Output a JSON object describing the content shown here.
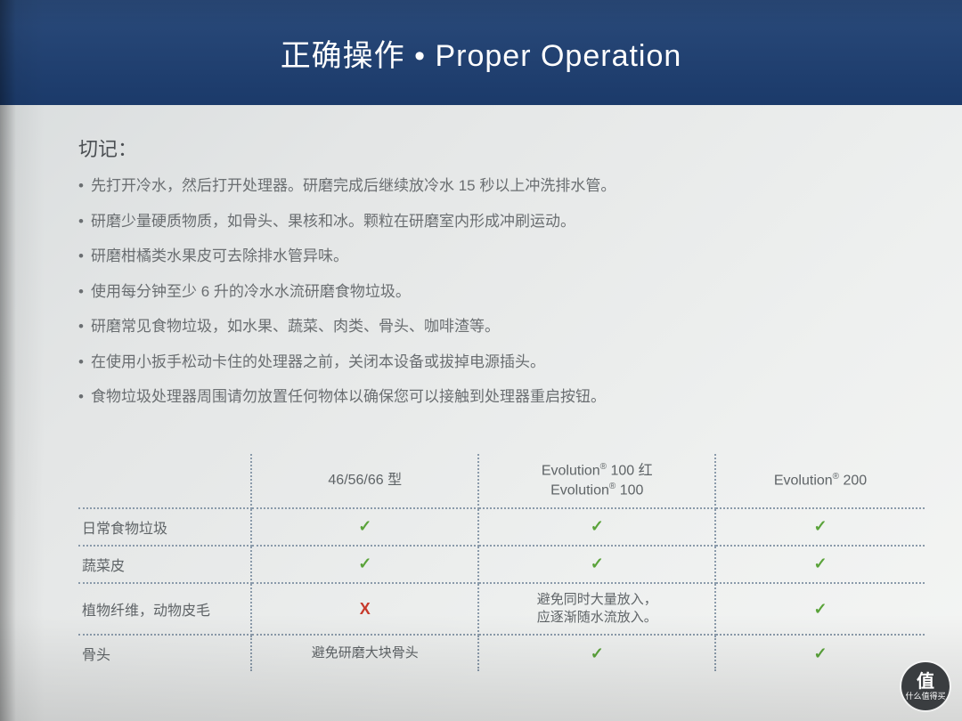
{
  "banner": {
    "title": "正确操作 • Proper Operation"
  },
  "section": {
    "heading": "切记："
  },
  "bullets": [
    "先打开冷水，然后打开处理器。研磨完成后继续放冷水 15 秒以上冲洗排水管。",
    "研磨少量硬质物质，如骨头、果核和冰。颗粒在研磨室内形成冲刷运动。",
    "研磨柑橘类水果皮可去除排水管异味。",
    "使用每分钟至少 6 升的冷水水流研磨食物垃圾。",
    "研磨常见食物垃圾，如水果、蔬菜、肉类、骨头、咖啡渣等。",
    "在使用小扳手松动卡住的处理器之前，关闭本设备或拔掉电源插头。",
    "食物垃圾处理器周围请勿放置任何物体以确保您可以接触到处理器重启按钮。"
  ],
  "table": {
    "type": "table",
    "columns": [
      "",
      "46/56/66 型",
      "Evolution® 100 红\nEvolution® 100",
      "Evolution® 200"
    ],
    "rows": [
      {
        "label": "日常食物垃圾",
        "cells": [
          "check",
          "check",
          "check"
        ]
      },
      {
        "label": "蔬菜皮",
        "cells": [
          "check",
          "check",
          "check"
        ]
      },
      {
        "label": "植物纤维，动物皮毛",
        "cells": [
          "cross",
          "避免同时大量放入，\n应逐渐随水流放入。",
          "check"
        ]
      },
      {
        "label": "骨头",
        "cells": [
          "避免研磨大块骨头",
          "check",
          "check"
        ]
      }
    ],
    "check_color": "#5aa33a",
    "cross_color": "#c73a2c",
    "border_color": "#8a9aaa",
    "text_color": "#5f6467",
    "font_size": 16
  },
  "watermark": {
    "char": "值",
    "text": "什么值得买"
  },
  "colors": {
    "banner_bg": "#1b3a6a",
    "page_bg": "#e8eaea",
    "text": "#6a6e71"
  }
}
